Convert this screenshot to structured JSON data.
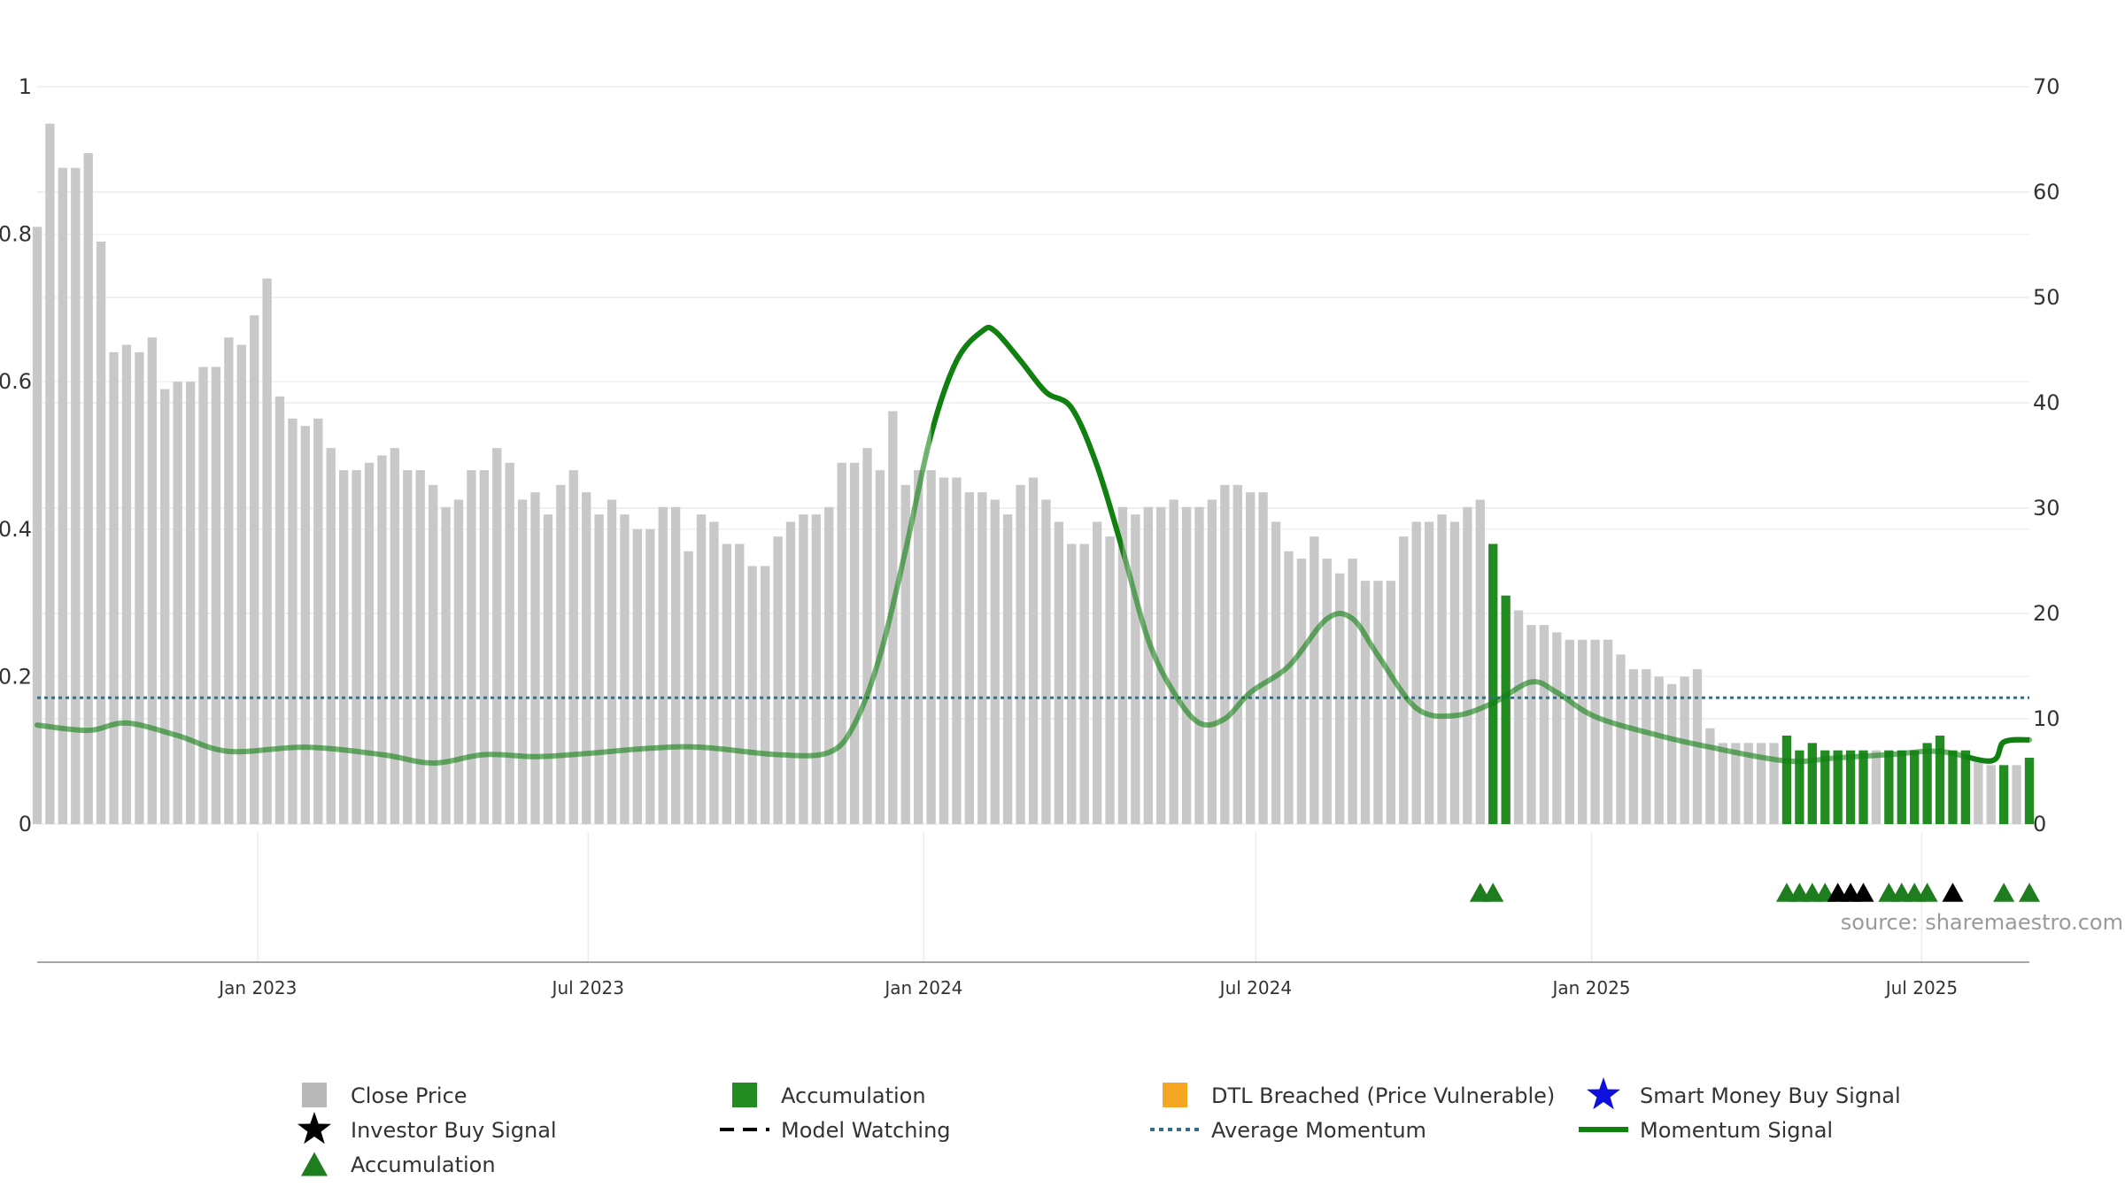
{
  "chart_data": {
    "type": "bar",
    "source": "source: sharemaestro.com",
    "left_axis": {
      "min": 0,
      "max": 1,
      "ticks": [
        "0",
        "0.2",
        "0.4",
        "0.6",
        "0.8",
        "1"
      ],
      "tick_values": [
        0,
        0.2,
        0.4,
        0.6,
        0.8,
        1
      ]
    },
    "right_axis": {
      "min": 0,
      "max": 70,
      "ticks": [
        "0",
        "10",
        "20",
        "30",
        "40",
        "50",
        "60",
        "70"
      ],
      "tick_values": [
        0,
        10,
        20,
        30,
        40,
        50,
        60,
        70
      ]
    },
    "x_axis": {
      "start": "2022-09-02",
      "end": "2025-08-29",
      "ticks": [
        {
          "label": "Jan 2023",
          "date": "2023-01-01"
        },
        {
          "label": "Jul 2023",
          "date": "2023-07-01"
        },
        {
          "label": "Jan 2024",
          "date": "2024-01-01"
        },
        {
          "label": "Jul 2024",
          "date": "2024-07-01"
        },
        {
          "label": "Jan 2025",
          "date": "2025-01-01"
        },
        {
          "label": "Jul 2025",
          "date": "2025-07-01"
        }
      ]
    },
    "grid": true,
    "colors": {
      "close_price": "#c8c8c8",
      "accumulation_bar": "#228b22",
      "accumulation_marker": "#1e7d1e",
      "investor_buy": "#000000",
      "dtl": "#f5a623",
      "smart_money": "#1010dd",
      "model_watching": "#000000",
      "average_momentum": "#2a6f97",
      "momentum": "#108010"
    },
    "close_price": [
      [
        "2022-09-02",
        0.81
      ],
      [
        "2022-09-09",
        0.95
      ],
      [
        "2022-09-16",
        0.89
      ],
      [
        "2022-09-23",
        0.89
      ],
      [
        "2022-09-30",
        0.91
      ],
      [
        "2022-10-07",
        0.79
      ],
      [
        "2022-10-14",
        0.64
      ],
      [
        "2022-10-21",
        0.65
      ],
      [
        "2022-10-28",
        0.64
      ],
      [
        "2022-11-04",
        0.66
      ],
      [
        "2022-11-11",
        0.59
      ],
      [
        "2022-11-18",
        0.6
      ],
      [
        "2022-11-25",
        0.6
      ],
      [
        "2022-12-02",
        0.62
      ],
      [
        "2022-12-09",
        0.62
      ],
      [
        "2022-12-16",
        0.66
      ],
      [
        "2022-12-23",
        0.65
      ],
      [
        "2022-12-30",
        0.69
      ],
      [
        "2023-01-06",
        0.74
      ],
      [
        "2023-01-13",
        0.58
      ],
      [
        "2023-01-20",
        0.55
      ],
      [
        "2023-01-27",
        0.54
      ],
      [
        "2023-02-03",
        0.55
      ],
      [
        "2023-02-10",
        0.51
      ],
      [
        "2023-02-17",
        0.48
      ],
      [
        "2023-02-24",
        0.48
      ],
      [
        "2023-03-03",
        0.49
      ],
      [
        "2023-03-10",
        0.5
      ],
      [
        "2023-03-17",
        0.51
      ],
      [
        "2023-03-24",
        0.48
      ],
      [
        "2023-03-31",
        0.48
      ],
      [
        "2023-04-07",
        0.46
      ],
      [
        "2023-04-14",
        0.43
      ],
      [
        "2023-04-21",
        0.44
      ],
      [
        "2023-04-28",
        0.48
      ],
      [
        "2023-05-05",
        0.48
      ],
      [
        "2023-05-12",
        0.51
      ],
      [
        "2023-05-19",
        0.49
      ],
      [
        "2023-05-26",
        0.44
      ],
      [
        "2023-06-02",
        0.45
      ],
      [
        "2023-06-09",
        0.42
      ],
      [
        "2023-06-16",
        0.46
      ],
      [
        "2023-06-23",
        0.48
      ],
      [
        "2023-06-30",
        0.45
      ],
      [
        "2023-07-07",
        0.42
      ],
      [
        "2023-07-14",
        0.44
      ],
      [
        "2023-07-21",
        0.42
      ],
      [
        "2023-07-28",
        0.4
      ],
      [
        "2023-08-04",
        0.4
      ],
      [
        "2023-08-11",
        0.43
      ],
      [
        "2023-08-18",
        0.43
      ],
      [
        "2023-08-25",
        0.37
      ],
      [
        "2023-09-01",
        0.42
      ],
      [
        "2023-09-08",
        0.41
      ],
      [
        "2023-09-15",
        0.38
      ],
      [
        "2023-09-22",
        0.38
      ],
      [
        "2023-09-29",
        0.35
      ],
      [
        "2023-10-06",
        0.35
      ],
      [
        "2023-10-13",
        0.39
      ],
      [
        "2023-10-20",
        0.41
      ],
      [
        "2023-10-27",
        0.42
      ],
      [
        "2023-11-03",
        0.42
      ],
      [
        "2023-11-10",
        0.43
      ],
      [
        "2023-11-17",
        0.49
      ],
      [
        "2023-11-24",
        0.49
      ],
      [
        "2023-12-01",
        0.51
      ],
      [
        "2023-12-08",
        0.48
      ],
      [
        "2023-12-15",
        0.56
      ],
      [
        "2023-12-22",
        0.46
      ],
      [
        "2023-12-29",
        0.48
      ],
      [
        "2024-01-05",
        0.48
      ],
      [
        "2024-01-12",
        0.47
      ],
      [
        "2024-01-19",
        0.47
      ],
      [
        "2024-01-26",
        0.45
      ],
      [
        "2024-02-02",
        0.45
      ],
      [
        "2024-02-09",
        0.44
      ],
      [
        "2024-02-16",
        0.42
      ],
      [
        "2024-02-23",
        0.46
      ],
      [
        "2024-03-01",
        0.47
      ],
      [
        "2024-03-08",
        0.44
      ],
      [
        "2024-03-15",
        0.41
      ],
      [
        "2024-03-22",
        0.38
      ],
      [
        "2024-03-29",
        0.38
      ],
      [
        "2024-04-05",
        0.41
      ],
      [
        "2024-04-12",
        0.39
      ],
      [
        "2024-04-19",
        0.43
      ],
      [
        "2024-04-26",
        0.42
      ],
      [
        "2024-05-03",
        0.43
      ],
      [
        "2024-05-10",
        0.43
      ],
      [
        "2024-05-17",
        0.44
      ],
      [
        "2024-05-24",
        0.43
      ],
      [
        "2024-05-31",
        0.43
      ],
      [
        "2024-06-07",
        0.44
      ],
      [
        "2024-06-14",
        0.46
      ],
      [
        "2024-06-21",
        0.46
      ],
      [
        "2024-06-28",
        0.45
      ],
      [
        "2024-07-05",
        0.45
      ],
      [
        "2024-07-12",
        0.41
      ],
      [
        "2024-07-19",
        0.37
      ],
      [
        "2024-07-26",
        0.36
      ],
      [
        "2024-08-02",
        0.39
      ],
      [
        "2024-08-09",
        0.36
      ],
      [
        "2024-08-16",
        0.34
      ],
      [
        "2024-08-23",
        0.36
      ],
      [
        "2024-08-30",
        0.33
      ],
      [
        "2024-09-06",
        0.33
      ],
      [
        "2024-09-13",
        0.33
      ],
      [
        "2024-09-20",
        0.39
      ],
      [
        "2024-09-27",
        0.41
      ],
      [
        "2024-10-04",
        0.41
      ],
      [
        "2024-10-11",
        0.42
      ],
      [
        "2024-10-18",
        0.41
      ],
      [
        "2024-10-25",
        0.43
      ],
      [
        "2024-11-01",
        0.44
      ],
      [
        "2024-11-08",
        0.38
      ],
      [
        "2024-11-15",
        0.31
      ],
      [
        "2024-11-22",
        0.29
      ],
      [
        "2024-11-29",
        0.27
      ],
      [
        "2024-12-06",
        0.27
      ],
      [
        "2024-12-13",
        0.26
      ],
      [
        "2024-12-20",
        0.25
      ],
      [
        "2024-12-27",
        0.25
      ],
      [
        "2025-01-03",
        0.25
      ],
      [
        "2025-01-10",
        0.25
      ],
      [
        "2025-01-17",
        0.23
      ],
      [
        "2025-01-24",
        0.21
      ],
      [
        "2025-01-31",
        0.21
      ],
      [
        "2025-02-07",
        0.2
      ],
      [
        "2025-02-14",
        0.19
      ],
      [
        "2025-02-21",
        0.2
      ],
      [
        "2025-02-28",
        0.21
      ],
      [
        "2025-03-07",
        0.13
      ],
      [
        "2025-03-14",
        0.11
      ],
      [
        "2025-03-21",
        0.11
      ],
      [
        "2025-03-28",
        0.11
      ],
      [
        "2025-04-04",
        0.11
      ],
      [
        "2025-04-11",
        0.11
      ],
      [
        "2025-04-18",
        0.12
      ],
      [
        "2025-04-25",
        0.1
      ],
      [
        "2025-05-02",
        0.11
      ],
      [
        "2025-05-09",
        0.1
      ],
      [
        "2025-05-16",
        0.1
      ],
      [
        "2025-05-23",
        0.1
      ],
      [
        "2025-05-30",
        0.1
      ],
      [
        "2025-06-06",
        0.1
      ],
      [
        "2025-06-13",
        0.1
      ],
      [
        "2025-06-20",
        0.1
      ],
      [
        "2025-06-27",
        0.1
      ],
      [
        "2025-07-04",
        0.11
      ],
      [
        "2025-07-11",
        0.12
      ],
      [
        "2025-07-18",
        0.1
      ],
      [
        "2025-07-25",
        0.1
      ],
      [
        "2025-08-01",
        0.09
      ],
      [
        "2025-08-08",
        0.08
      ],
      [
        "2025-08-15",
        0.08
      ],
      [
        "2025-08-22",
        0.08
      ],
      [
        "2025-08-29",
        0.09
      ]
    ],
    "accumulation_dates": [
      "2024-11-08",
      "2024-11-15",
      "2025-04-18",
      "2025-04-25",
      "2025-05-02",
      "2025-05-09",
      "2025-05-16",
      "2025-05-23",
      "2025-05-30",
      "2025-06-13",
      "2025-06-20",
      "2025-06-27",
      "2025-07-04",
      "2025-07-11",
      "2025-07-18",
      "2025-07-25",
      "2025-08-15",
      "2025-08-29"
    ],
    "accumulation_marker_dates": [
      "2024-11-01",
      "2024-11-08",
      "2025-04-18",
      "2025-04-25",
      "2025-05-02",
      "2025-05-09",
      "2025-06-13",
      "2025-06-20",
      "2025-06-27",
      "2025-07-04",
      "2025-08-15",
      "2025-08-29"
    ],
    "investor_buy_marker_dates": [
      "2025-05-16",
      "2025-05-23",
      "2025-05-30",
      "2025-07-18"
    ],
    "average_momentum": 12.0,
    "momentum": [
      [
        "2022-09-02",
        9.4
      ],
      [
        "2022-09-30",
        8.9
      ],
      [
        "2022-10-21",
        9.6
      ],
      [
        "2022-11-18",
        8.4
      ],
      [
        "2022-12-16",
        6.9
      ],
      [
        "2023-01-27",
        7.3
      ],
      [
        "2023-03-10",
        6.6
      ],
      [
        "2023-04-07",
        5.8
      ],
      [
        "2023-05-05",
        6.6
      ],
      [
        "2023-06-02",
        6.4
      ],
      [
        "2023-06-30",
        6.7
      ],
      [
        "2023-08-04",
        7.2
      ],
      [
        "2023-09-01",
        7.3
      ],
      [
        "2023-10-13",
        6.6
      ],
      [
        "2023-11-10",
        6.8
      ],
      [
        "2023-11-24",
        9.5
      ],
      [
        "2023-12-08",
        16.0
      ],
      [
        "2023-12-22",
        26.0
      ],
      [
        "2024-01-05",
        37.0
      ],
      [
        "2024-01-19",
        44.0
      ],
      [
        "2024-02-02",
        46.8
      ],
      [
        "2024-02-09",
        46.8
      ],
      [
        "2024-02-23",
        44.0
      ],
      [
        "2024-03-08",
        41.0
      ],
      [
        "2024-03-22",
        39.5
      ],
      [
        "2024-04-05",
        34.0
      ],
      [
        "2024-04-19",
        26.0
      ],
      [
        "2024-05-03",
        17.5
      ],
      [
        "2024-05-17",
        12.5
      ],
      [
        "2024-05-31",
        9.6
      ],
      [
        "2024-06-14",
        10.0
      ],
      [
        "2024-06-28",
        12.5
      ],
      [
        "2024-07-19",
        15.0
      ],
      [
        "2024-08-09",
        19.5
      ],
      [
        "2024-08-23",
        19.5
      ],
      [
        "2024-09-06",
        16.0
      ],
      [
        "2024-09-27",
        11.0
      ],
      [
        "2024-10-18",
        10.3
      ],
      [
        "2024-11-08",
        11.5
      ],
      [
        "2024-11-29",
        13.5
      ],
      [
        "2024-12-13",
        12.5
      ],
      [
        "2025-01-03",
        10.2
      ],
      [
        "2025-02-07",
        8.4
      ],
      [
        "2025-03-07",
        7.3
      ],
      [
        "2025-04-18",
        6.0
      ],
      [
        "2025-05-16",
        6.3
      ],
      [
        "2025-06-13",
        6.6
      ],
      [
        "2025-07-11",
        6.9
      ],
      [
        "2025-08-08",
        6.0
      ],
      [
        "2025-08-15",
        7.8
      ],
      [
        "2025-08-29",
        8.0
      ]
    ],
    "momentum_bold_ranges": [
      [
        "2024-01-05",
        "2024-04-19"
      ],
      [
        "2025-07-25",
        "2025-08-29"
      ]
    ],
    "legend": [
      {
        "label": "Close Price",
        "kind": "square",
        "color": "#b8b8b8"
      },
      {
        "label": "Accumulation",
        "kind": "square",
        "color": "#228b22"
      },
      {
        "label": "DTL Breached (Price Vulnerable)",
        "kind": "square",
        "color": "#f5a623"
      },
      {
        "label": "Smart Money Buy Signal",
        "kind": "star",
        "color": "#1010dd"
      },
      {
        "label": "Investor Buy Signal",
        "kind": "star",
        "color": "#000000"
      },
      {
        "label": "Model Watching",
        "kind": "dash",
        "color": "#000000"
      },
      {
        "label": "Average Momentum",
        "kind": "dot",
        "color": "#2a6f97"
      },
      {
        "label": "Momentum Signal",
        "kind": "line",
        "color": "#108010"
      },
      {
        "label": "Accumulation",
        "kind": "triangle",
        "color": "#1e7d1e"
      }
    ]
  }
}
